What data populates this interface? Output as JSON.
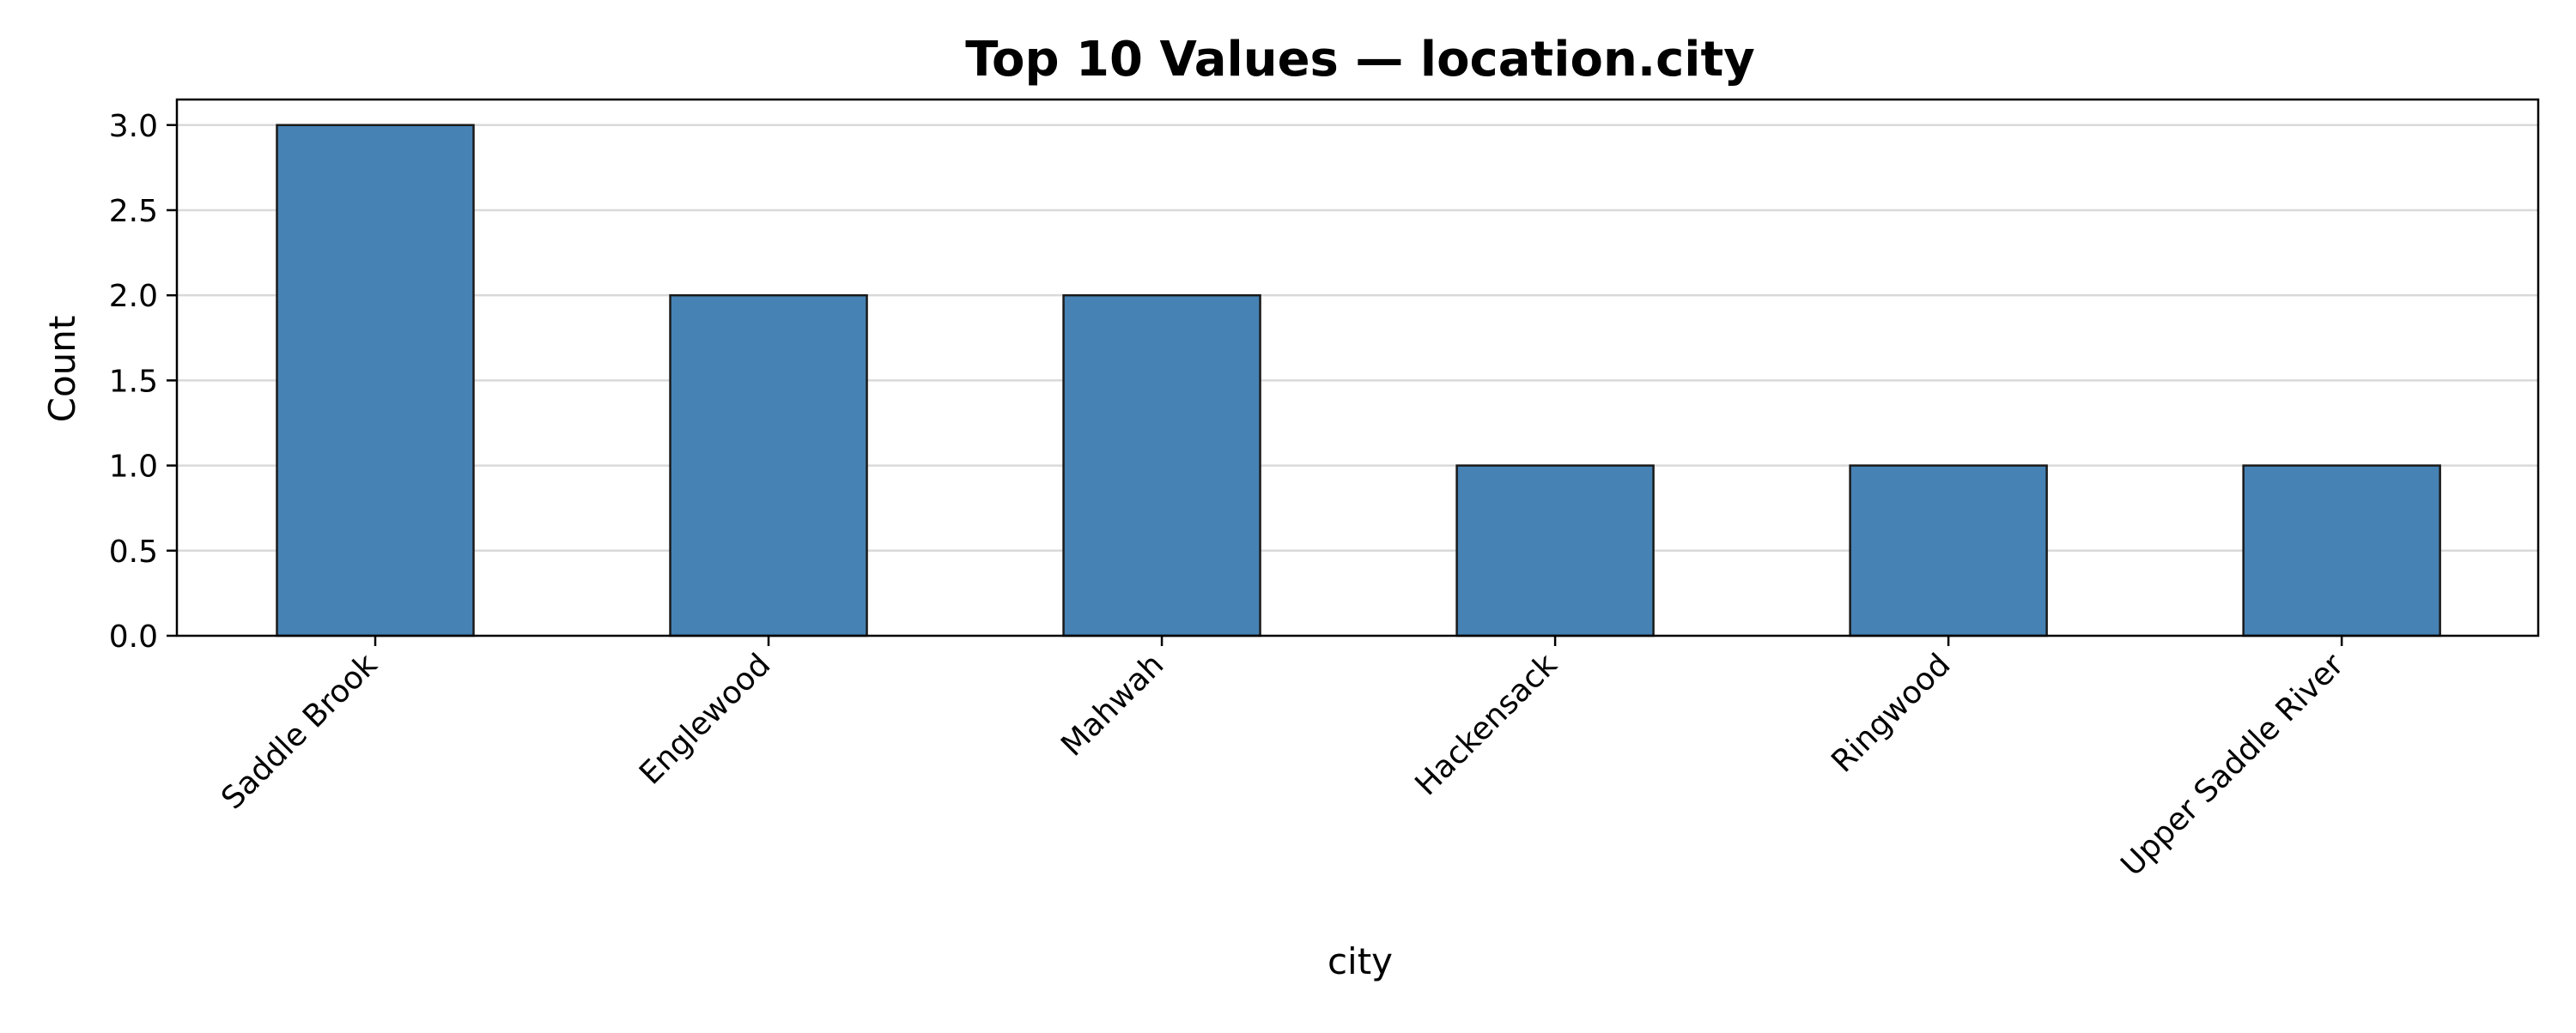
{
  "chart_data": {
    "type": "bar",
    "title": "Top 10 Values — location.city",
    "xlabel": "city",
    "ylabel": "Count",
    "categories": [
      "Saddle Brook",
      "Englewood",
      "Mahwah",
      "Hackensack",
      "Ringwood",
      "Upper Saddle River"
    ],
    "values": [
      3,
      2,
      2,
      1,
      1,
      1
    ],
    "ylim": [
      0,
      3.15
    ],
    "yticks": [
      "0.0",
      "0.5",
      "1.0",
      "1.5",
      "2.0",
      "2.5",
      "3.0"
    ],
    "grid": "horizontal",
    "legend": "none",
    "colors": {
      "bar_fill": "#4682b4",
      "bar_edge": "#1a1a1a",
      "grid": "#d9d9d9",
      "axis": "#000000"
    }
  }
}
